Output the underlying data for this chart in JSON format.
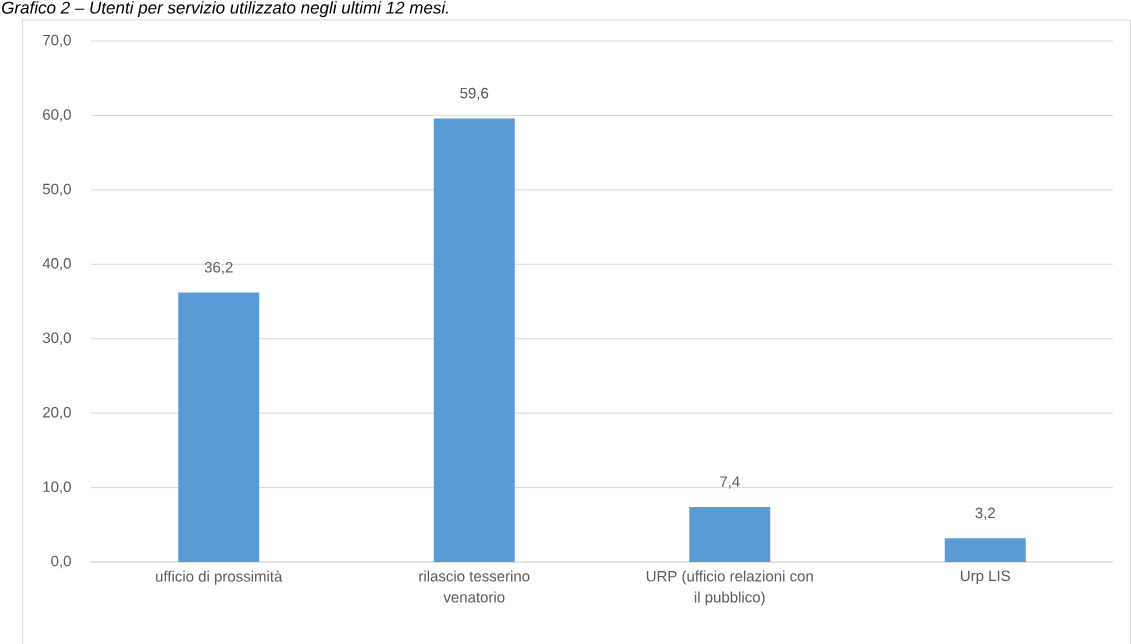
{
  "chart_data": {
    "type": "bar",
    "title": "Grafico 2 – Utenti per servizio utilizzato negli ultimi 12 mesi.",
    "categories": [
      "ufficio di prossimità",
      "rilascio tesserino venatorio",
      "URP (ufficio relazioni con il pubblico)",
      "Urp LIS"
    ],
    "values": [
      36.2,
      59.6,
      7.4,
      3.2
    ],
    "color": "#5b9bd5",
    "value_labels": [
      "36,2",
      "59,6",
      "7,4",
      "3,2"
    ],
    "ylim": [
      0,
      70
    ],
    "yticks": [
      {
        "value": 0,
        "label": "0,0"
      },
      {
        "value": 10,
        "label": "10,0"
      },
      {
        "value": 20,
        "label": "20,0"
      },
      {
        "value": 30,
        "label": "30,0"
      },
      {
        "value": 40,
        "label": "40,0"
      },
      {
        "value": 50,
        "label": "50,0"
      },
      {
        "value": 60,
        "label": "60,0"
      },
      {
        "value": 70,
        "label": "70,0"
      }
    ],
    "grid": "y"
  }
}
